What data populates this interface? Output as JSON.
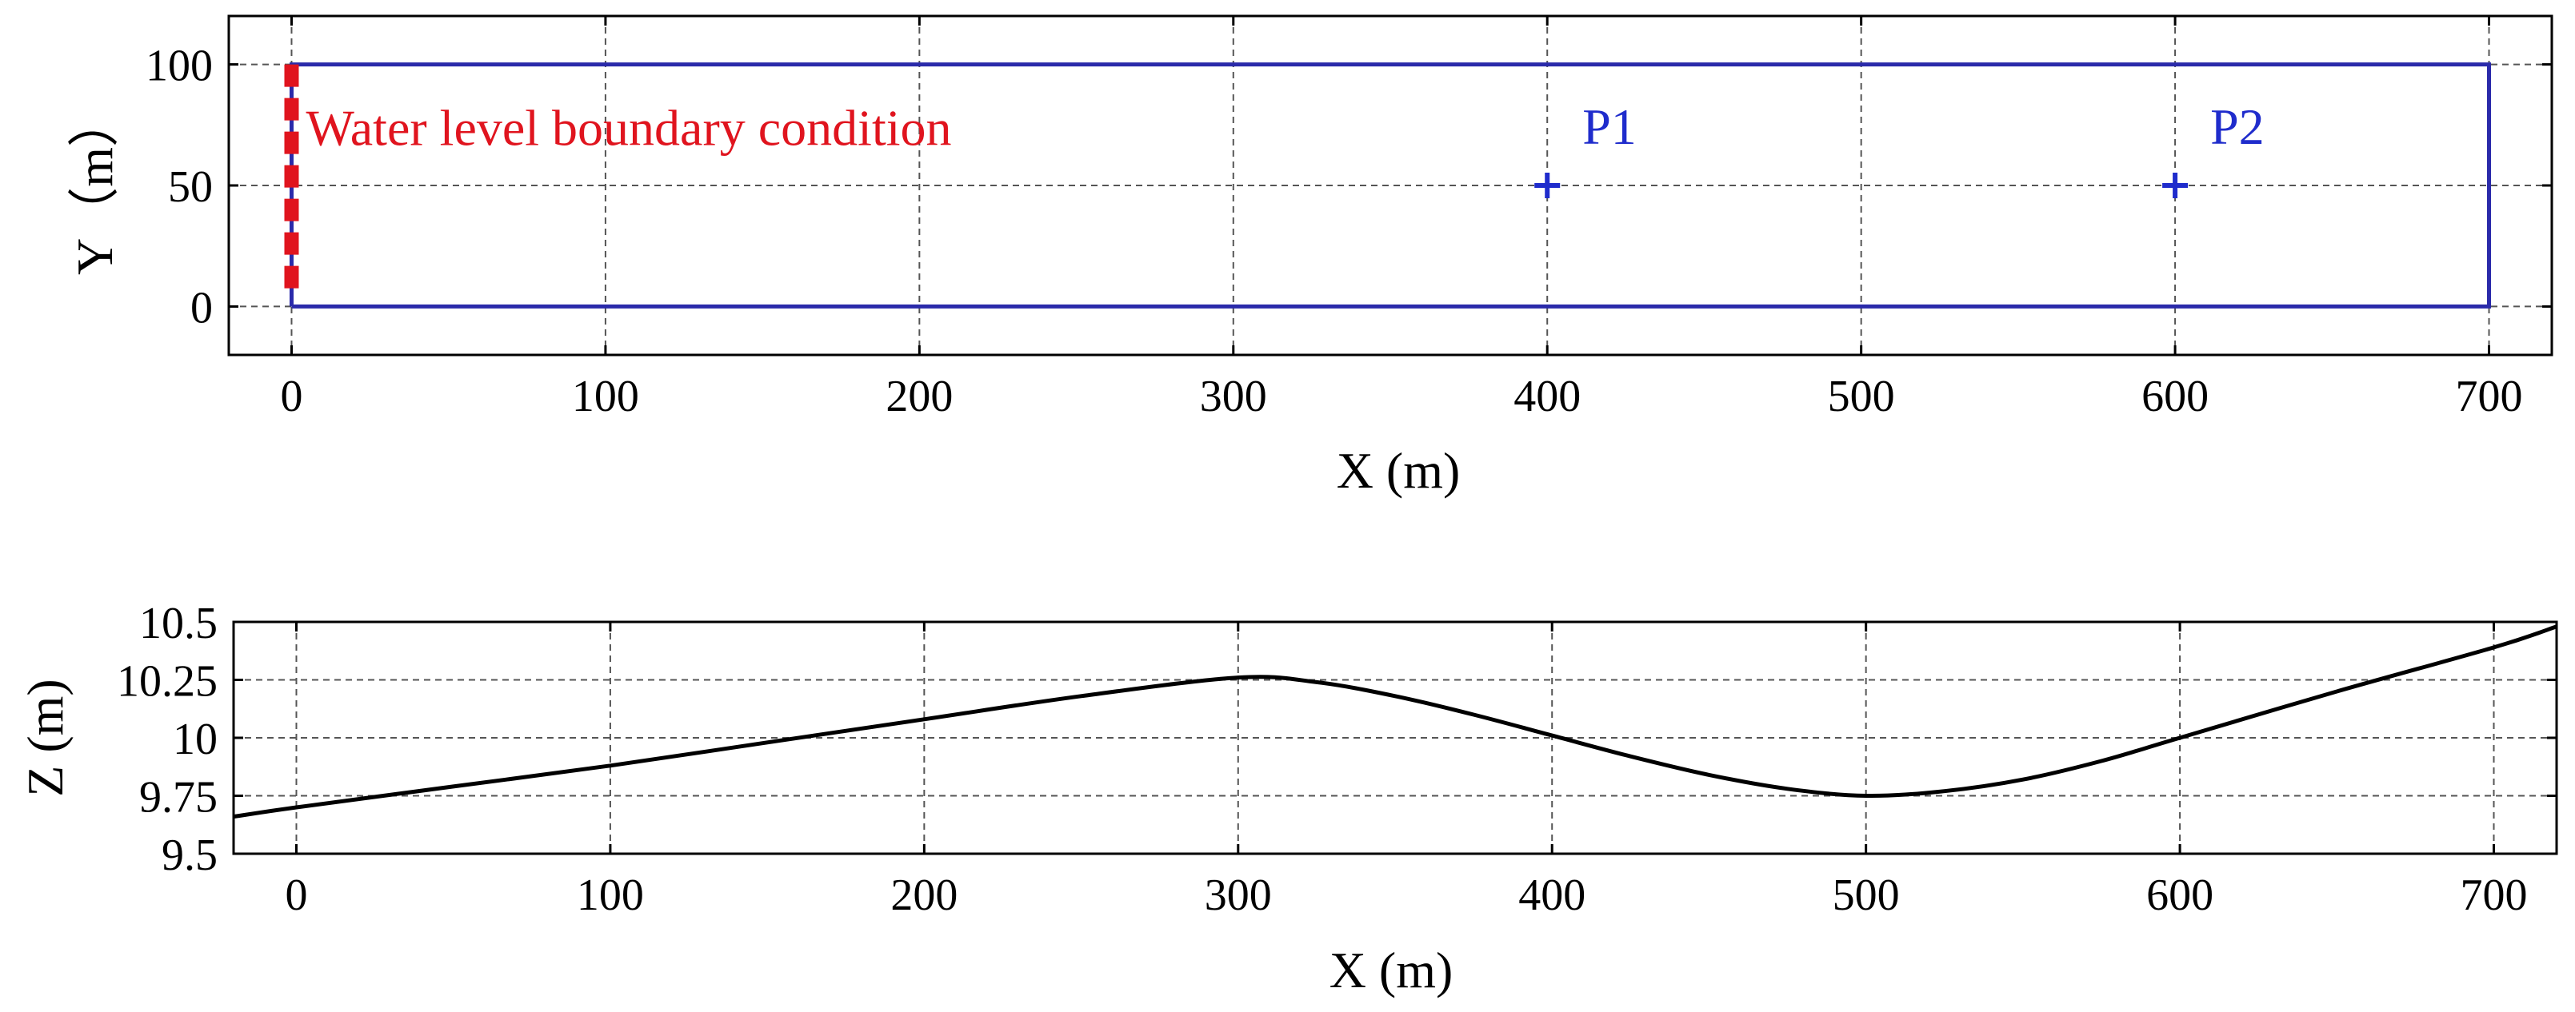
{
  "chart_data": [
    {
      "type": "scatter",
      "xlabel": "X (m)",
      "ylabel": "Y（m）",
      "xlim": [
        -20,
        720
      ],
      "ylim": [
        -20,
        120
      ],
      "xticks": [
        "0",
        "100",
        "200",
        "300",
        "400",
        "500",
        "600",
        "700"
      ],
      "yticks": [
        "0",
        "50",
        "100"
      ],
      "grid": true,
      "domain_outline": {
        "x": [
          0,
          700,
          700,
          0,
          0
        ],
        "y": [
          0,
          0,
          100,
          100,
          0
        ],
        "color": "#2a2aaa"
      },
      "boundary": {
        "label": "Water level boundary condition",
        "x": 0,
        "y_range": [
          5,
          100
        ],
        "color": "#e0141e"
      },
      "points": [
        {
          "name": "P1",
          "x": 400,
          "y": 50,
          "color": "#1f2ccc"
        },
        {
          "name": "P2",
          "x": 600,
          "y": 50,
          "color": "#1f2ccc"
        }
      ]
    },
    {
      "type": "line",
      "xlabel": "X (m)",
      "ylabel": "Z (m)",
      "xlim": [
        -20,
        720
      ],
      "ylim": [
        9.5,
        10.5
      ],
      "xticks": [
        "0",
        "100",
        "200",
        "300",
        "400",
        "500",
        "600",
        "700"
      ],
      "yticks": [
        "9.5",
        "9.75",
        "10",
        "10.25",
        "10.5"
      ],
      "grid": true,
      "series": [
        {
          "color": "#000000",
          "x": [
            -20,
            0,
            50,
            100,
            150,
            200,
            250,
            300,
            325,
            350,
            375,
            400,
            425,
            450,
            475,
            500,
            525,
            550,
            575,
            600,
            650,
            700,
            720
          ],
          "y": [
            9.66,
            9.7,
            9.79,
            9.88,
            9.98,
            10.08,
            10.18,
            10.26,
            10.24,
            10.18,
            10.1,
            10.01,
            9.92,
            9.84,
            9.78,
            9.75,
            9.77,
            9.82,
            9.9,
            10.0,
            10.2,
            10.39,
            10.48
          ]
        }
      ]
    }
  ]
}
